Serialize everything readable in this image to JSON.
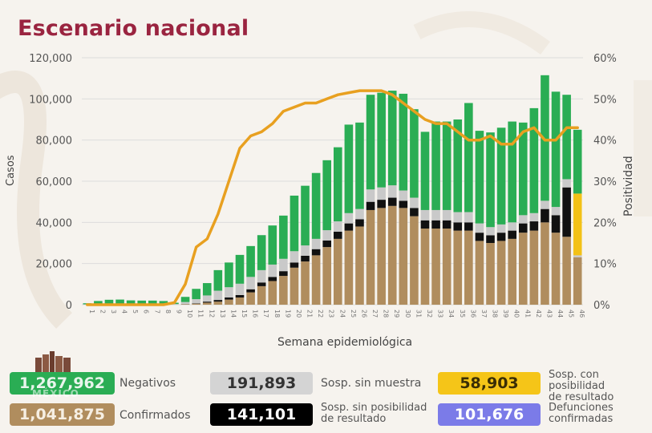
{
  "title": "Escenario nacional",
  "chart_data": {
    "type": "bar",
    "title": "Escenario nacional",
    "xlabel": "Semana epidemiológica",
    "ylabel": "Casos",
    "y2label": "Positividad",
    "ylim": [
      0,
      120000
    ],
    "y2lim": [
      0,
      60
    ],
    "yticks": [
      "0",
      "20,000",
      "40,000",
      "60,000",
      "80,000",
      "100,000",
      "120,000"
    ],
    "y2ticks": [
      "0%",
      "10%",
      "20%",
      "30%",
      "40%",
      "50%",
      "60%"
    ],
    "grid": true,
    "categories": [
      "1",
      "2",
      "3",
      "4",
      "5",
      "6",
      "7",
      "8",
      "9",
      "10",
      "11",
      "12",
      "13",
      "14",
      "15",
      "16",
      "17",
      "18",
      "19",
      "20",
      "21",
      "22",
      "23",
      "24",
      "25",
      "26",
      "27",
      "28",
      "29",
      "30",
      "31",
      "32",
      "33",
      "34",
      "35",
      "36",
      "37",
      "38",
      "39",
      "40",
      "41",
      "42",
      "43",
      "44",
      "45",
      "46"
    ],
    "series": [
      {
        "name": "Confirmados",
        "color": "#b08d5e",
        "values": [
          0,
          0,
          0,
          0,
          0,
          0,
          0,
          0,
          50,
          200,
          500,
          1000,
          1500,
          2500,
          3500,
          6000,
          9000,
          11500,
          14000,
          18000,
          21000,
          24000,
          28000,
          32000,
          36000,
          38000,
          46000,
          47000,
          48000,
          47000,
          43000,
          37000,
          37000,
          37000,
          36000,
          36000,
          31000,
          30000,
          31000,
          32000,
          35000,
          36000,
          40000,
          35000,
          33000,
          23000
        ]
      },
      {
        "name": "Sosp. sin posibilidad de resultado",
        "color": "#111111",
        "values": [
          0,
          0,
          0,
          0,
          0,
          0,
          0,
          0,
          0,
          100,
          200,
          500,
          800,
          1000,
          1200,
          1500,
          1800,
          2000,
          2300,
          2500,
          2800,
          3000,
          3200,
          3500,
          3500,
          3500,
          4000,
          4000,
          4000,
          3500,
          4000,
          4000,
          4000,
          4000,
          4000,
          4000,
          4000,
          3700,
          4000,
          4000,
          4500,
          4500,
          6500,
          8500,
          24000,
          0
        ]
      },
      {
        "name": "Sosp. sin muestra",
        "color": "#c9c9c9",
        "values": [
          200,
          300,
          400,
          300,
          300,
          300,
          300,
          300,
          300,
          1000,
          2000,
          3000,
          4500,
          5000,
          5500,
          6000,
          6000,
          6000,
          6000,
          5500,
          5000,
          5000,
          5000,
          5000,
          5000,
          5000,
          6000,
          6000,
          6000,
          5000,
          5000,
          5000,
          5000,
          5000,
          5000,
          5000,
          4500,
          4000,
          4000,
          4000,
          4000,
          4000,
          4000,
          4000,
          4000,
          1000
        ]
      },
      {
        "name": "Sosp. con posibilidad de resultado",
        "color": "#f3c116",
        "values": [
          0,
          0,
          0,
          0,
          0,
          0,
          0,
          0,
          0,
          0,
          0,
          0,
          0,
          0,
          0,
          0,
          0,
          0,
          0,
          0,
          0,
          0,
          0,
          0,
          0,
          0,
          0,
          0,
          0,
          0,
          0,
          0,
          0,
          0,
          0,
          0,
          0,
          0,
          0,
          0,
          0,
          0,
          0,
          0,
          0,
          30000
        ]
      },
      {
        "name": "Negativos",
        "color": "#2aad54",
        "values": [
          500,
          1500,
          2000,
          2200,
          1800,
          1700,
          1700,
          1500,
          600,
          2500,
          5000,
          6000,
          10000,
          12000,
          14000,
          15000,
          17000,
          19000,
          21000,
          27000,
          29000,
          32000,
          34000,
          36000,
          43000,
          42000,
          46000,
          46000,
          46000,
          47000,
          43000,
          38000,
          43000,
          43000,
          45000,
          53000,
          45000,
          46000,
          47000,
          49000,
          45000,
          51000,
          61000,
          56000,
          41000,
          31000
        ]
      }
    ],
    "line": {
      "name": "Positividad",
      "color": "#e8a020",
      "values_pct": [
        0,
        0,
        0,
        0,
        0,
        0,
        0,
        0,
        0.5,
        5,
        14,
        16,
        22,
        30,
        38,
        41,
        42,
        44,
        47,
        48,
        49,
        49,
        50,
        51,
        51.5,
        52,
        52,
        52,
        51,
        49,
        47,
        45,
        44,
        44,
        42,
        40,
        40,
        41,
        39,
        39,
        42,
        43,
        40,
        40,
        43,
        43
      ]
    }
  },
  "legend": {
    "negativos": {
      "value": "1,267,962",
      "label": "Negativos",
      "color": "#2aad54"
    },
    "confirmados": {
      "value": "1,041,875",
      "label": "Confirmados",
      "color": "#b08d5e"
    },
    "sin_muestra": {
      "value": "191,893",
      "label": "Sosp. sin muestra",
      "color": "#c9c9c9"
    },
    "sin_posibilidad": {
      "value": "141,101",
      "label1": "Sosp. sin posibilidad",
      "label2": "de resultado",
      "color": "#000000"
    },
    "con_posibilidad": {
      "value": "58,903",
      "label1": "Sosp. con posibilidad",
      "label2": "de resultado",
      "color": "#f5c518"
    },
    "defunciones": {
      "value": "101,676",
      "label1": "Defunciones",
      "label2": "confirmadas",
      "color": "#7b7be8"
    }
  },
  "logo_text": "MÉXICO"
}
